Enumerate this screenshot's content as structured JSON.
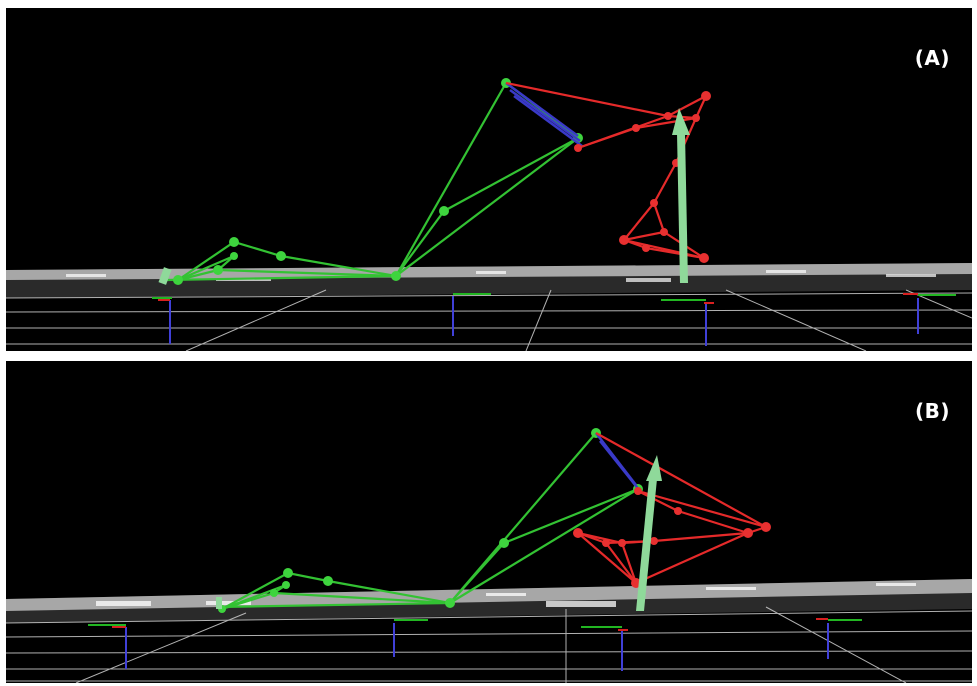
{
  "panels": [
    {
      "id": "A",
      "label": "(A)"
    },
    {
      "id": "B",
      "label": "(B)"
    }
  ],
  "colors": {
    "background": "#000000",
    "grid": "#d0d0d0",
    "segment_green": "#33c233",
    "segment_red": "#e52a2a",
    "segment_blue": "#3a3ac8",
    "force_arrow": "#8fd99a",
    "axis_blue": "#4040d8",
    "axis_green": "#22b622",
    "axis_red": "#d82020"
  }
}
